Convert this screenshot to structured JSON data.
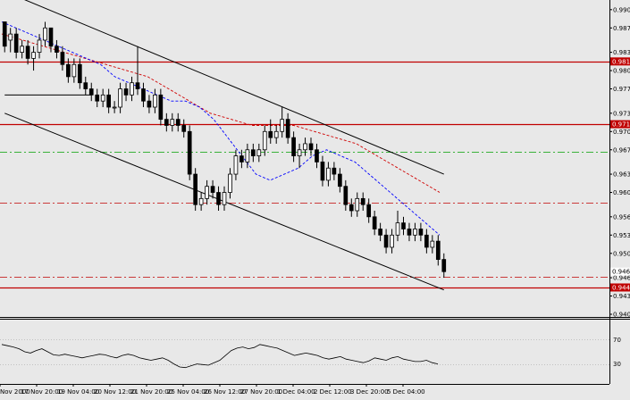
{
  "colors": {
    "background": "#e8e8e8",
    "bull_candle": "#ffffff",
    "bear_candle": "#000000",
    "resistance_line": "#c00000",
    "blue_ma": "#0000ff",
    "red_ma": "#d00000",
    "green_level": "#00a000",
    "price_tag_red": "#c00000",
    "price_tag_bg": "#ffffff"
  },
  "price_axis": {
    "ticks": [
      "0.990",
      "0.987",
      "0.983",
      "0.980",
      "0.977",
      "0.973",
      "0.970",
      "0.967",
      "0.963",
      "0.960",
      "0.956",
      "0.953",
      "0.950",
      "0.946",
      "0.943",
      "0.940"
    ],
    "current_price_tag": "0.946",
    "level_tags": [
      "0.981",
      "0.971",
      "0.944"
    ]
  },
  "indicator_axis": {
    "ticks": [
      "70",
      "30"
    ]
  },
  "time_axis": {
    "labels": [
      "Nov 2000",
      "17 Nov 20:00",
      "19 Nov 04:00",
      "20 Nov 12:00",
      "21 Nov 20:00",
      "25 Nov 04:00",
      "26 Nov 12:00",
      "27 Nov 20:00",
      "1 Dec 04:00",
      "2 Dec 12:00",
      "3 Dec 20:00",
      "5 Dec 04:00"
    ]
  },
  "chart_data": {
    "type": "candlestick",
    "y_range": [
      0.94,
      0.991
    ],
    "indicator_range": [
      0,
      100
    ],
    "indicator_levels": [
      70,
      30
    ],
    "horizontal_levels": [
      {
        "value": 0.9815,
        "style": "solid",
        "color": "#c00000"
      },
      {
        "value": 0.9712,
        "style": "solid",
        "color": "#c00000"
      },
      {
        "value": 0.9444,
        "style": "solid",
        "color": "#c00000"
      },
      {
        "value": 0.9666,
        "style": "dash-dot",
        "color": "#00a000"
      },
      {
        "value": 0.9583,
        "style": "dash-dot",
        "color": "#c00000"
      },
      {
        "value": 0.9462,
        "style": "dash-dot",
        "color": "#c00000"
      }
    ],
    "candles": [
      [
        0.988,
        0.988,
        0.983,
        0.984
      ],
      [
        0.985,
        0.987,
        0.983,
        0.986
      ],
      [
        0.986,
        0.987,
        0.982,
        0.983
      ],
      [
        0.983,
        0.985,
        0.982,
        0.984
      ],
      [
        0.984,
        0.985,
        0.981,
        0.982
      ],
      [
        0.982,
        0.984,
        0.98,
        0.983
      ],
      [
        0.983,
        0.986,
        0.982,
        0.985
      ],
      [
        0.985,
        0.988,
        0.984,
        0.987
      ],
      [
        0.987,
        0.987,
        0.983,
        0.984
      ],
      [
        0.984,
        0.985,
        0.982,
        0.983
      ],
      [
        0.983,
        0.984,
        0.98,
        0.981
      ],
      [
        0.981,
        0.982,
        0.978,
        0.979
      ],
      [
        0.979,
        0.982,
        0.978,
        0.981
      ],
      [
        0.981,
        0.982,
        0.977,
        0.978
      ],
      [
        0.978,
        0.979,
        0.976,
        0.977
      ],
      [
        0.977,
        0.978,
        0.975,
        0.976
      ],
      [
        0.976,
        0.977,
        0.974,
        0.975
      ],
      [
        0.975,
        0.977,
        0.974,
        0.976
      ],
      [
        0.976,
        0.977,
        0.973,
        0.974
      ],
      [
        0.974,
        0.975,
        0.973,
        0.974
      ],
      [
        0.974,
        0.978,
        0.973,
        0.977
      ],
      [
        0.977,
        0.978,
        0.975,
        0.976
      ],
      [
        0.976,
        0.979,
        0.975,
        0.978
      ],
      [
        0.978,
        0.984,
        0.976,
        0.977
      ],
      [
        0.977,
        0.978,
        0.974,
        0.975
      ],
      [
        0.975,
        0.976,
        0.973,
        0.974
      ],
      [
        0.974,
        0.977,
        0.973,
        0.976
      ],
      [
        0.976,
        0.977,
        0.971,
        0.972
      ],
      [
        0.972,
        0.973,
        0.97,
        0.971
      ],
      [
        0.971,
        0.973,
        0.97,
        0.972
      ],
      [
        0.972,
        0.973,
        0.97,
        0.971
      ],
      [
        0.971,
        0.972,
        0.969,
        0.97
      ],
      [
        0.97,
        0.971,
        0.962,
        0.963
      ],
      [
        0.963,
        0.964,
        0.957,
        0.958
      ],
      [
        0.958,
        0.96,
        0.957,
        0.959
      ],
      [
        0.959,
        0.962,
        0.958,
        0.961
      ],
      [
        0.961,
        0.962,
        0.959,
        0.96
      ],
      [
        0.96,
        0.961,
        0.957,
        0.958
      ],
      [
        0.958,
        0.961,
        0.957,
        0.96
      ],
      [
        0.96,
        0.964,
        0.959,
        0.963
      ],
      [
        0.963,
        0.967,
        0.962,
        0.966
      ],
      [
        0.966,
        0.967,
        0.964,
        0.965
      ],
      [
        0.965,
        0.968,
        0.964,
        0.967
      ],
      [
        0.967,
        0.968,
        0.965,
        0.966
      ],
      [
        0.966,
        0.968,
        0.965,
        0.967
      ],
      [
        0.967,
        0.971,
        0.966,
        0.97
      ],
      [
        0.97,
        0.972,
        0.968,
        0.969
      ],
      [
        0.969,
        0.971,
        0.968,
        0.97
      ],
      [
        0.97,
        0.974,
        0.969,
        0.972
      ],
      [
        0.972,
        0.973,
        0.968,
        0.969
      ],
      [
        0.969,
        0.97,
        0.965,
        0.966
      ],
      [
        0.966,
        0.968,
        0.964,
        0.967
      ],
      [
        0.967,
        0.969,
        0.966,
        0.968
      ],
      [
        0.968,
        0.969,
        0.966,
        0.967
      ],
      [
        0.967,
        0.968,
        0.964,
        0.965
      ],
      [
        0.965,
        0.966,
        0.961,
        0.962
      ],
      [
        0.962,
        0.965,
        0.961,
        0.964
      ],
      [
        0.964,
        0.965,
        0.962,
        0.963
      ],
      [
        0.963,
        0.964,
        0.96,
        0.961
      ],
      [
        0.961,
        0.962,
        0.957,
        0.958
      ],
      [
        0.958,
        0.959,
        0.956,
        0.957
      ],
      [
        0.957,
        0.96,
        0.956,
        0.959
      ],
      [
        0.959,
        0.96,
        0.957,
        0.958
      ],
      [
        0.958,
        0.959,
        0.955,
        0.956
      ],
      [
        0.956,
        0.957,
        0.953,
        0.954
      ],
      [
        0.954,
        0.955,
        0.952,
        0.953
      ],
      [
        0.953,
        0.954,
        0.95,
        0.951
      ],
      [
        0.951,
        0.954,
        0.95,
        0.953
      ],
      [
        0.953,
        0.957,
        0.952,
        0.955
      ],
      [
        0.955,
        0.956,
        0.953,
        0.954
      ],
      [
        0.954,
        0.955,
        0.952,
        0.953
      ],
      [
        0.953,
        0.955,
        0.952,
        0.954
      ],
      [
        0.954,
        0.955,
        0.952,
        0.953
      ],
      [
        0.953,
        0.954,
        0.95,
        0.951
      ],
      [
        0.951,
        0.953,
        0.95,
        0.952
      ],
      [
        0.952,
        0.953,
        0.948,
        0.949
      ],
      [
        0.949,
        0.95,
        0.946,
        0.947
      ]
    ],
    "blue_ma": [
      0.988,
      0.987,
      0.986,
      0.985,
      0.984,
      0.983,
      0.982,
      0.981,
      0.979,
      0.978,
      0.977,
      0.976,
      0.975,
      0.975,
      0.974,
      0.972,
      0.969,
      0.966,
      0.963,
      0.962,
      0.963,
      0.964,
      0.966,
      0.967,
      0.966,
      0.965,
      0.963,
      0.961,
      0.959,
      0.957,
      0.955,
      0.953
    ],
    "red_ma": [
      0.986,
      0.985,
      0.984,
      0.983,
      0.982,
      0.981,
      0.98,
      0.979,
      0.977,
      0.975,
      0.973,
      0.972,
      0.971,
      0.971,
      0.971,
      0.97,
      0.969,
      0.968,
      0.966,
      0.964,
      0.962,
      0.96
    ],
    "trend_lines": [
      {
        "from": [
          0,
          0.993
        ],
        "to": [
          76,
          0.963
        ]
      },
      {
        "from": [
          0,
          0.973
        ],
        "to": [
          76,
          0.944
        ]
      },
      {
        "from": [
          0,
          0.976
        ],
        "to": [
          15,
          0.976
        ]
      }
    ],
    "indicator_values": [
      62,
      60,
      58,
      55,
      50,
      48,
      52,
      55,
      50,
      45,
      44,
      46,
      44,
      42,
      40,
      42,
      44,
      46,
      45,
      42,
      40,
      44,
      46,
      44,
      40,
      38,
      36,
      38,
      40,
      36,
      30,
      25,
      24,
      27,
      30,
      29,
      28,
      32,
      36,
      44,
      52,
      56,
      58,
      55,
      57,
      62,
      60,
      58,
      56,
      52,
      48,
      44,
      46,
      48,
      46,
      44,
      40,
      38,
      40,
      42,
      38,
      36,
      34,
      32,
      35,
      40,
      38,
      36,
      40,
      42,
      38,
      36,
      34,
      34,
      36,
      32,
      30
    ]
  }
}
